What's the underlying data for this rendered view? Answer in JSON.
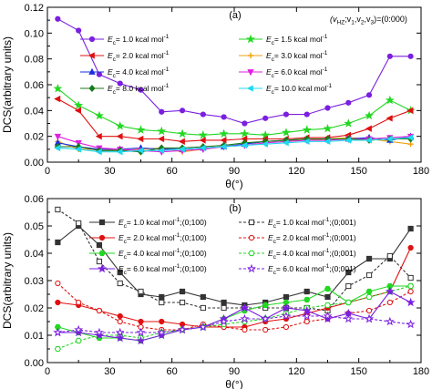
{
  "chart_data": [
    {
      "type": "line",
      "panel_label": "(a)",
      "annotation": "(v_HZ; v_1, v_2, v_3)=(0:000)",
      "annotation_parts": [
        "(v",
        "HZ",
        ";v",
        "1",
        ",v",
        "2",
        ",v",
        "3",
        ")=(0:000)"
      ],
      "xlabel": "θ(°)",
      "ylabel": "DCS(arbitrary units)",
      "xlim": [
        0,
        180
      ],
      "ylim": [
        0,
        0.12
      ],
      "xticks": [
        0,
        30,
        60,
        90,
        120,
        150,
        180
      ],
      "yticks": [
        0.0,
        0.02,
        0.04,
        0.06,
        0.08,
        0.1,
        0.12
      ],
      "ytick_labels": [
        "0.00",
        "0.02",
        "0.04",
        "0.06",
        "0.08",
        "0.10",
        "0.12"
      ],
      "grid": false,
      "legend_placement": "upper-left, two columns",
      "x": [
        5,
        15,
        25,
        35,
        45,
        55,
        65,
        75,
        85,
        95,
        105,
        115,
        125,
        135,
        145,
        155,
        165,
        175
      ],
      "series": [
        {
          "name": "E_c= 1.0 kcal mol^-1",
          "legend_parts": [
            "E",
            "c",
            "= 1.0 kcal mol",
            "-1"
          ],
          "color": "#7b1fe0",
          "marker": "circle",
          "dash": "solid",
          "values": [
            0.111,
            0.102,
            0.068,
            0.061,
            0.056,
            0.039,
            0.04,
            0.037,
            0.035,
            0.03,
            0.034,
            0.037,
            0.037,
            0.042,
            0.046,
            0.052,
            0.082,
            0.082
          ]
        },
        {
          "name": "E_c= 1.5 kcal mol^-1",
          "legend_parts": [
            "E",
            "c",
            "= 1.5 kcal mol",
            "-1"
          ],
          "color": "#22d822",
          "marker": "star",
          "dash": "solid",
          "values": [
            0.057,
            0.044,
            0.036,
            0.028,
            0.025,
            0.024,
            0.022,
            0.021,
            0.022,
            0.022,
            0.021,
            0.023,
            0.025,
            0.026,
            0.03,
            0.036,
            0.048,
            0.04
          ]
        },
        {
          "name": "E_c= 2.0 kcal mol^-1",
          "legend_parts": [
            "E",
            "c",
            "= 2.0 kcal mol",
            "-1"
          ],
          "color": "#e01010",
          "marker": "left-triangle",
          "dash": "solid",
          "values": [
            0.049,
            0.04,
            0.02,
            0.02,
            0.018,
            0.018,
            0.016,
            0.017,
            0.017,
            0.018,
            0.018,
            0.018,
            0.019,
            0.019,
            0.021,
            0.026,
            0.034,
            0.04
          ]
        },
        {
          "name": "E_c= 3.0 kcal mol^-1",
          "legend_parts": [
            "E",
            "c",
            "= 3.0 kcal mol",
            "-1"
          ],
          "color": "#f0a010",
          "marker": "plus",
          "dash": "solid",
          "values": [
            0.016,
            0.01,
            0.01,
            0.009,
            0.01,
            0.011,
            0.008,
            0.01,
            0.012,
            0.014,
            0.016,
            0.017,
            0.017,
            0.018,
            0.019,
            0.018,
            0.016,
            0.014
          ]
        },
        {
          "name": "E_c= 4.0 kcal mol^-1",
          "legend_parts": [
            "E",
            "c",
            "= 4.0 kcal mol",
            "-1"
          ],
          "color": "#1a2ee0",
          "marker": "up-triangle",
          "dash": "solid",
          "values": [
            0.015,
            0.012,
            0.01,
            0.01,
            0.011,
            0.01,
            0.01,
            0.011,
            0.012,
            0.014,
            0.016,
            0.017,
            0.018,
            0.018,
            0.018,
            0.019,
            0.017,
            0.02
          ]
        },
        {
          "name": "E_c= 6.0 kcal mol^-1",
          "legend_parts": [
            "E",
            "c",
            "= 6.0 kcal mol",
            "-1"
          ],
          "color": "#e020e0",
          "marker": "down-triangle",
          "dash": "solid",
          "values": [
            0.02,
            0.015,
            0.011,
            0.01,
            0.009,
            0.008,
            0.009,
            0.01,
            0.012,
            0.013,
            0.015,
            0.016,
            0.017,
            0.017,
            0.018,
            0.018,
            0.019,
            0.02
          ]
        },
        {
          "name": "E_c= 8.0 kcal mol^-1",
          "legend_parts": [
            "E",
            "c",
            "= 8.0 kcal mol",
            "-1"
          ],
          "color": "#1a7a1a",
          "marker": "diamond",
          "dash": "solid",
          "values": [
            0.012,
            0.012,
            0.009,
            0.009,
            0.008,
            0.011,
            0.011,
            0.012,
            0.013,
            0.015,
            0.016,
            0.017,
            0.018,
            0.018,
            0.018,
            0.017,
            0.018,
            0.018
          ]
        },
        {
          "name": "E_c= 10.0 kcal mol^-1",
          "legend_parts": [
            "E",
            "c",
            "= 10.0 kcal mol",
            "-1"
          ],
          "color": "#20d8f0",
          "marker": "left-triangle",
          "dash": "solid",
          "values": [
            0.011,
            0.01,
            0.008,
            0.008,
            0.009,
            0.009,
            0.01,
            0.011,
            0.012,
            0.013,
            0.014,
            0.015,
            0.016,
            0.016,
            0.017,
            0.017,
            0.018,
            0.019
          ]
        }
      ]
    },
    {
      "type": "line",
      "panel_label": "(b)",
      "xlabel": "θ(°)",
      "ylabel": "DCS(arbitrary units)",
      "xlim": [
        0,
        180
      ],
      "ylim": [
        0,
        0.06
      ],
      "xticks": [
        0,
        30,
        60,
        90,
        120,
        150,
        180
      ],
      "yticks": [
        0.0,
        0.01,
        0.02,
        0.03,
        0.04,
        0.05,
        0.06
      ],
      "ytick_labels": [
        "0.00",
        "0.01",
        "0.02",
        "0.03",
        "0.04",
        "0.05",
        "0.06"
      ],
      "grid": false,
      "legend_placement": "upper-left, two columns",
      "x": [
        5,
        15,
        25,
        35,
        45,
        55,
        65,
        75,
        85,
        95,
        105,
        115,
        125,
        135,
        145,
        155,
        165,
        175
      ],
      "series": [
        {
          "name": "E_c= 1.0 kcal mol^-1;(0;100)",
          "legend_parts": [
            "E",
            "c",
            "= 1.0 kcal mol",
            "-1",
            ";(0;100)"
          ],
          "color": "#333333",
          "marker": "square",
          "filled": true,
          "dash": "solid",
          "values": [
            0.044,
            0.05,
            0.043,
            0.033,
            0.025,
            0.024,
            0.026,
            0.024,
            0.022,
            0.021,
            0.022,
            0.024,
            0.026,
            0.024,
            0.033,
            0.038,
            0.038,
            0.049
          ]
        },
        {
          "name": "E_c= 1.0 kcal mol^-1;(0;001)",
          "legend_parts": [
            "E",
            "c",
            "= 1.0 kcal mol",
            "-1",
            ";(0;001)"
          ],
          "color": "#333333",
          "marker": "square",
          "filled": false,
          "dash": "dashed",
          "values": [
            0.056,
            0.051,
            0.037,
            0.029,
            0.026,
            0.022,
            0.022,
            0.02,
            0.02,
            0.02,
            0.02,
            0.02,
            0.02,
            0.019,
            0.028,
            0.032,
            0.039,
            0.031
          ]
        },
        {
          "name": "E_c= 2.0 kcal mol^-1;(0;100)",
          "legend_parts": [
            "E",
            "c",
            "= 2.0 kcal mol",
            "-1",
            ";(0;100)"
          ],
          "color": "#e01010",
          "marker": "circle",
          "filled": true,
          "dash": "solid",
          "values": [
            0.022,
            0.021,
            0.019,
            0.017,
            0.015,
            0.015,
            0.014,
            0.013,
            0.013,
            0.013,
            0.015,
            0.016,
            0.018,
            0.02,
            0.022,
            0.024,
            0.026,
            0.042
          ]
        },
        {
          "name": "E_c= 2.0 kcal mol^-1;(0;001)",
          "legend_parts": [
            "E",
            "c",
            "= 2.0 kcal mol",
            "-1",
            ";(0;001)"
          ],
          "color": "#e01010",
          "marker": "circle",
          "filled": false,
          "dash": "dashed",
          "values": [
            0.029,
            0.022,
            0.019,
            0.015,
            0.013,
            0.012,
            0.012,
            0.014,
            0.013,
            0.012,
            0.012,
            0.013,
            0.015,
            0.016,
            0.018,
            0.019,
            0.022,
            0.026
          ]
        },
        {
          "name": "E_c= 4.0 kcal mol^-1;(0;100)",
          "legend_parts": [
            "E",
            "c",
            "= 4.0 kcal mol",
            "-1",
            ";(0;100)"
          ],
          "color": "#22d822",
          "marker": "hexagon",
          "filled": true,
          "dash": "solid",
          "values": [
            0.013,
            0.011,
            0.009,
            0.009,
            0.008,
            0.01,
            0.012,
            0.013,
            0.016,
            0.019,
            0.021,
            0.022,
            0.023,
            0.027,
            0.022,
            0.026,
            0.028,
            0.028
          ]
        },
        {
          "name": "E_c= 4.0 kcal mol^-1;(0;001)",
          "legend_parts": [
            "E",
            "c",
            "= 4.0 kcal mol",
            "-1",
            ";(0;001)"
          ],
          "color": "#22d822",
          "marker": "hexagon",
          "filled": false,
          "dash": "dashed",
          "values": [
            0.005,
            0.008,
            0.01,
            0.01,
            0.009,
            0.011,
            0.012,
            0.013,
            0.014,
            0.015,
            0.016,
            0.018,
            0.02,
            0.021,
            0.022,
            0.024,
            0.026,
            0.028
          ]
        },
        {
          "name": "E_c= 6.0 kcal mol^-1;(0;100)",
          "legend_parts": [
            "E",
            "c",
            "= 6.0 kcal mol",
            "-1",
            ";(0;100)"
          ],
          "color": "#7b1fe0",
          "marker": "star",
          "filled": true,
          "dash": "solid",
          "values": [
            0.011,
            0.011,
            0.01,
            0.009,
            0.008,
            0.01,
            0.012,
            0.013,
            0.016,
            0.02,
            0.016,
            0.02,
            0.019,
            0.016,
            0.018,
            0.016,
            0.026,
            0.022
          ]
        },
        {
          "name": "E_c= 6.0 kcal mol^-1;(0;001)",
          "legend_parts": [
            "E",
            "c",
            "= 6.0 kcal mol",
            "-1",
            ";(0;001)"
          ],
          "color": "#7b1fe0",
          "marker": "star",
          "filled": false,
          "dash": "dashed",
          "values": [
            0.011,
            0.012,
            0.011,
            0.011,
            0.011,
            0.011,
            0.012,
            0.013,
            0.015,
            0.016,
            0.016,
            0.017,
            0.017,
            0.017,
            0.016,
            0.016,
            0.015,
            0.014
          ]
        }
      ]
    }
  ]
}
